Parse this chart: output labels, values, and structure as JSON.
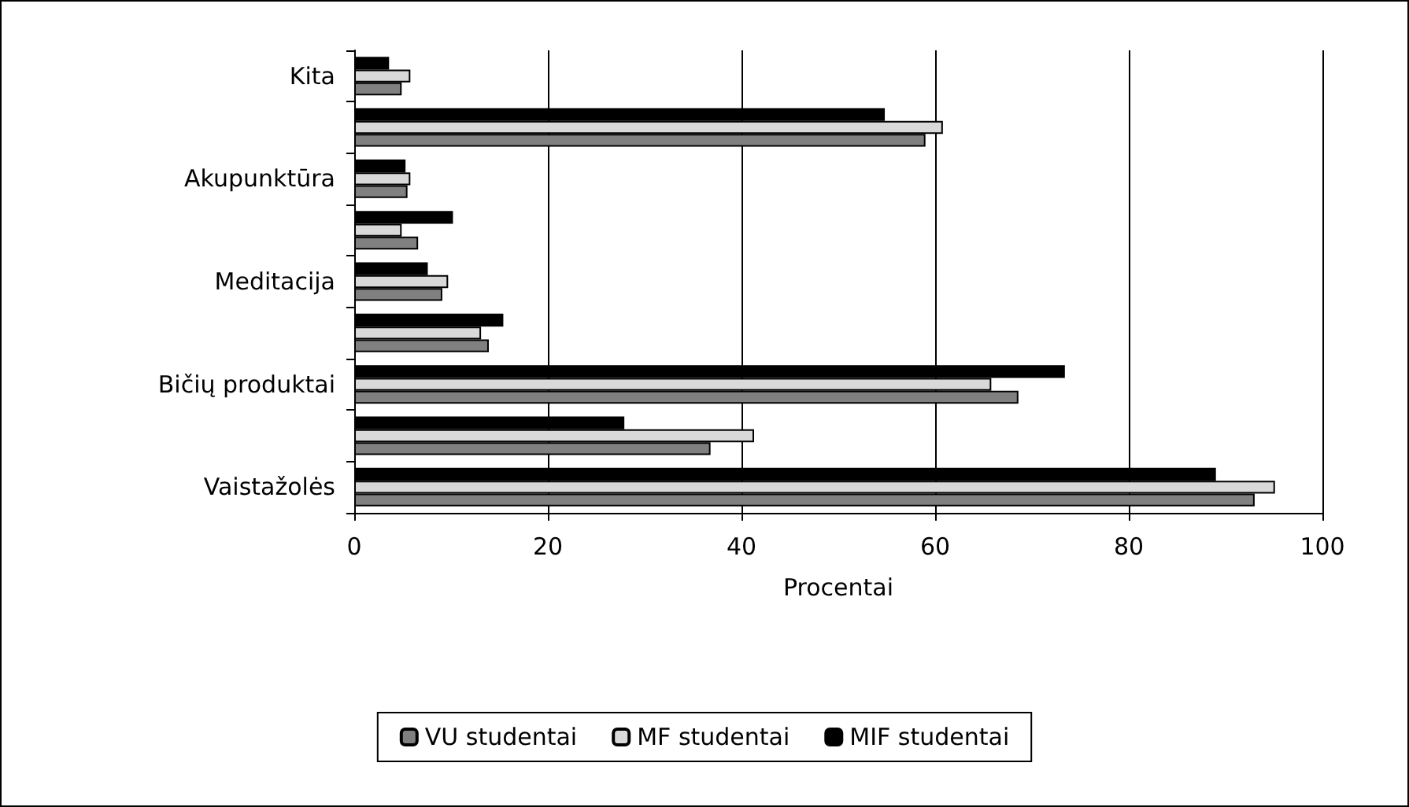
{
  "chart_data": {
    "type": "bar",
    "orientation": "horizontal",
    "xlabel": "Procentai",
    "categories": [
      "Kita",
      null,
      "Akupunktūra",
      null,
      "Meditacija",
      null,
      "Bičių produktai",
      null,
      "Vaistažolės"
    ],
    "series": [
      {
        "name": "VU studentai",
        "color": "#808080",
        "values": [
          4.9,
          59,
          5.5,
          6.6,
          9.1,
          13.9,
          68.6,
          36.8,
          93
        ]
      },
      {
        "name": "MF studentai",
        "color": "#d9d9d9",
        "values": [
          5.8,
          60.8,
          5.8,
          4.9,
          9.7,
          13.1,
          65.8,
          41.3,
          95.1
        ]
      },
      {
        "name": "MIF studentai",
        "color": "#000000",
        "values": [
          3.6,
          54.8,
          5.3,
          10.2,
          7.6,
          15.4,
          73.4,
          27.9,
          89
        ]
      }
    ],
    "xlim": [
      0,
      100
    ],
    "xticks": [
      0,
      20,
      40,
      60,
      80,
      100
    ],
    "grid": "x",
    "legend": "bottom"
  }
}
